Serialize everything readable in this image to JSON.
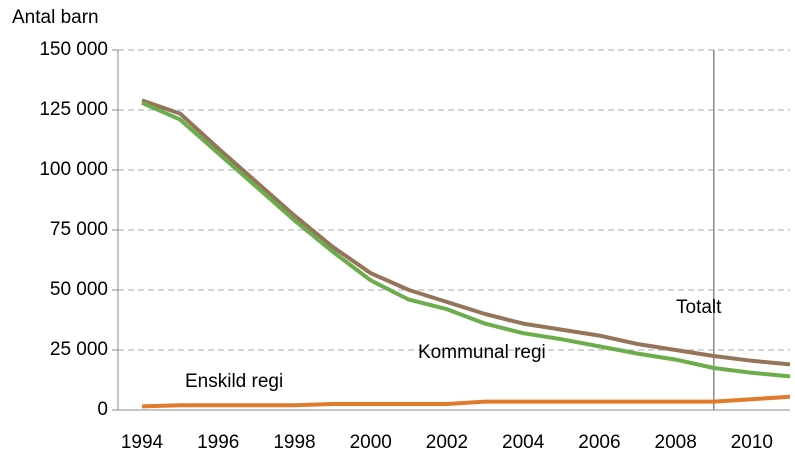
{
  "chart_data": {
    "type": "line",
    "y_axis_label": "Antal barn",
    "x": [
      1994,
      1995,
      1996,
      1997,
      1998,
      1999,
      2000,
      2001,
      2002,
      2003,
      2004,
      2005,
      2006,
      2007,
      2008,
      2009,
      2010,
      2011
    ],
    "xlim": [
      1993.37,
      2011
    ],
    "xticks": [
      1994,
      1996,
      1998,
      2000,
      2002,
      2004,
      2006,
      2008,
      2010
    ],
    "ylim": [
      0,
      150000
    ],
    "yticks": [
      {
        "value": 0,
        "label": "0"
      },
      {
        "value": 25000,
        "label": "25 000"
      },
      {
        "value": 50000,
        "label": "50 000"
      },
      {
        "value": 75000,
        "label": "75 000"
      },
      {
        "value": 100000,
        "label": "100 000"
      },
      {
        "value": 125000,
        "label": "125 000"
      },
      {
        "value": 150000,
        "label": "150 000"
      }
    ],
    "grid": true,
    "vertical_line_x": 2009,
    "series": [
      {
        "name": "Totalt",
        "color": "#957559",
        "values": [
          129000,
          123500,
          109000,
          95000,
          81000,
          68000,
          57000,
          50000,
          45000,
          40000,
          36000,
          33500,
          31000,
          27500,
          25000,
          22500,
          20500,
          19000
        ]
      },
      {
        "name": "Kommunal regi",
        "color": "#6aad4a",
        "values": [
          128000,
          121000,
          107000,
          93000,
          79000,
          66000,
          54000,
          46000,
          42000,
          36000,
          32000,
          29500,
          26500,
          23500,
          21000,
          17500,
          15500,
          14000
        ]
      },
      {
        "name": "Enskild regi",
        "color": "#e07b2b",
        "values": [
          1500,
          2000,
          2000,
          2000,
          2000,
          2500,
          2500,
          2500,
          2500,
          3500,
          3500,
          3500,
          3500,
          3500,
          3500,
          3500,
          4500,
          5500
        ]
      }
    ]
  }
}
